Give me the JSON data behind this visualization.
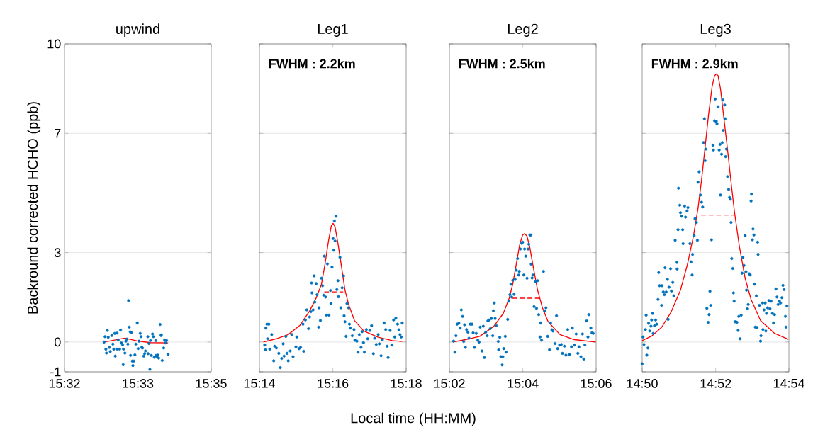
{
  "chart_data": [
    {
      "type": "scatter",
      "title": "upwind",
      "ylabel": "Backround corrected HCHO (ppb)",
      "xlim": [
        15.5333,
        15.5833
      ],
      "ylim": [
        -1,
        10
      ],
      "xticks": [
        {
          "value": 15.5333,
          "label": "15:32"
        },
        {
          "value": 15.5583,
          "label": "15:33"
        },
        {
          "value": 15.5833,
          "label": "15:35"
        }
      ],
      "yticks": [
        -1,
        0,
        3,
        7,
        10
      ],
      "grid": "y",
      "series": [
        {
          "type": "scatter",
          "color": "#0072bd",
          "marker": "circle",
          "x": [
            15.5468,
            15.5471,
            15.5479,
            15.5474,
            15.5476,
            15.5482,
            15.5486,
            15.5489,
            15.5494,
            15.5498,
            15.5501,
            15.5504,
            15.5506,
            15.5512,
            15.5513,
            15.5516,
            15.5521,
            15.5524,
            15.5527,
            15.5531,
            15.5533,
            15.5534,
            15.5539,
            15.5542,
            15.5546,
            15.5549,
            15.5551,
            15.5554,
            15.5557,
            15.5558,
            15.5561,
            15.5564,
            15.5566,
            15.5569,
            15.5573,
            15.5576,
            15.5581,
            15.5584,
            15.5587,
            15.5591,
            15.5594,
            15.5596,
            15.5599,
            15.5603,
            15.5606,
            15.5609,
            15.5617,
            15.5618,
            15.5621,
            15.5624,
            15.5626,
            15.5629,
            15.5633,
            15.5636,
            15.5639,
            15.5644,
            15.5645,
            15.5648,
            15.5651,
            15.5654,
            15.5659,
            15.5662,
            15.5663,
            15.5666,
            15.5671,
            15.5674,
            15.5677,
            15.5681,
            15.5686
          ],
          "values": [
            0.0,
            0.18,
            0.39,
            -0.24,
            -0.37,
            0.16,
            -0.18,
            -0.32,
            0.22,
            -0.07,
            -0.24,
            0.29,
            -0.47,
            0.3,
            -0.24,
            0.07,
            -0.24,
            0.4,
            -0.03,
            -0.09,
            -0.76,
            -0.24,
            -0.37,
            0.03,
            0.1,
            -0.07,
            1.39,
            0.5,
            0.34,
            -0.45,
            0.32,
            -0.64,
            -0.79,
            -0.64,
            -0.43,
            -0.07,
            0.64,
            -0.22,
            0.03,
            0.29,
            0.18,
            -0.18,
            -0.2,
            -0.47,
            -0.39,
            -0.3,
            0.18,
            -0.39,
            -0.05,
            -0.92,
            0.05,
            -0.45,
            0.27,
            0.18,
            -0.51,
            0.05,
            -0.45,
            -0.49,
            -0.44,
            -0.54,
            0.59,
            0.22,
            0.24,
            -0.62,
            -0.2,
            0.07,
            -0.03,
            0.05,
            -0.41
          ]
        },
        {
          "type": "line",
          "color": "#ff0000",
          "line_style": "solid",
          "x": [
            15.5468,
            15.5539,
            15.5584,
            15.5626,
            15.5686
          ],
          "values": [
            0.0,
            0.13,
            0.03,
            -0.02,
            -0.03
          ]
        }
      ]
    },
    {
      "type": "scatter",
      "title": "Leg1",
      "xlabel": "Local time (HH:MM)",
      "xlim": [
        15.2333,
        15.3
      ],
      "ylim": [
        -1,
        10
      ],
      "xticks": [
        {
          "value": 15.2333,
          "label": "15:14"
        },
        {
          "value": 15.2667,
          "label": "15:16"
        },
        {
          "value": 15.3,
          "label": "15:18"
        }
      ],
      "yticks": [
        -1,
        0,
        3,
        7,
        10
      ],
      "grid": "y",
      "tick_labels": "x",
      "annotations": [
        "FWHM : 2.2km"
      ],
      "series": [
        {
          "type": "scatter",
          "color": "#0072bd",
          "marker": "circle",
          "x": [
            15.2357,
            15.2362,
            15.2367,
            15.2376,
            15.237,
            15.236,
            15.238,
            15.2389,
            15.2398,
            15.2402,
            15.241,
            15.2421,
            15.2428,
            15.2434,
            15.2441,
            15.2445,
            15.2453,
            15.2459,
            15.2464,
            15.2473,
            15.248,
            15.2486,
            15.2499,
            15.2503,
            15.2513,
            15.252,
            15.2534,
            15.2531,
            15.2542,
            15.2548,
            15.2556,
            15.2561,
            15.2567,
            15.257,
            15.2572,
            15.2577,
            15.2582,
            15.2585,
            15.2591,
            15.2595,
            15.2602,
            15.2604,
            15.261,
            15.2615,
            15.262,
            15.2625,
            15.2628,
            15.2634,
            15.2638,
            15.2642,
            15.2649,
            15.2656,
            15.2658,
            15.2663,
            15.2668,
            15.2671,
            15.2674,
            15.2677,
            15.2681,
            15.2685,
            15.269,
            15.2692,
            15.2699,
            15.2703,
            15.2709,
            15.2716,
            15.2718,
            15.2722,
            15.2727,
            15.2731,
            15.2738,
            15.2742,
            15.2746,
            15.2755,
            15.2763,
            15.2767,
            15.2776,
            15.2781,
            15.2787,
            15.2795,
            15.28,
            15.2806,
            15.281,
            15.2819,
            15.2825,
            15.2835,
            15.2843,
            15.2851,
            15.2857,
            15.2864,
            15.2873,
            15.2878,
            15.2886,
            15.2892,
            15.29,
            15.2907,
            15.2914,
            15.2918,
            15.2927,
            15.2935,
            15.2943,
            15.2948,
            15.2953,
            15.2961,
            15.2967,
            15.2972,
            15.2978,
            15.2982
          ],
          "values": [
            -0.1,
            0.47,
            0.6,
            0.6,
            0.11,
            -0.26,
            -0.24,
            0.25,
            -0.63,
            -0.14,
            -0.2,
            -0.38,
            -0.86,
            -0.55,
            -0.06,
            -0.47,
            0.19,
            -0.38,
            -0.63,
            -0.3,
            0.25,
            -0.49,
            -0.16,
            0.17,
            -0.22,
            -0.18,
            -0.31,
            0.6,
            0.74,
            1.08,
            0.45,
            0.84,
            1.02,
            1.98,
            1.65,
            1.08,
            2.22,
            1.34,
            1.96,
            1.59,
            0.5,
            1.15,
            0.72,
            2.14,
            1.89,
            1.57,
            2.88,
            1.51,
            0.9,
            2.62,
            0.9,
            1.73,
            1.29,
            2.51,
            3.47,
            3.08,
            4.06,
            3.39,
            4.22,
            1.76,
            2.06,
            1.52,
            2.84,
            1.15,
            1.82,
            2.22,
            0.88,
            0.68,
            0.19,
            1.29,
            1.15,
            0.6,
            0.47,
            0.21,
            0.42,
            0.06,
            0.03,
            -0.34,
            0.25,
            -0.18,
            0.35,
            -0.02,
            -0.34,
            0.42,
            0.11,
            0.39,
            0.55,
            -0.39,
            0.13,
            -0.08,
            0.25,
            -0.06,
            -0.46,
            0.08,
            0.64,
            0.42,
            -0.14,
            -0.52,
            0.39,
            -0.1,
            0.74,
            0.17,
            0.8,
            0.6,
            0.41,
            0.25,
            0.17,
            0.64
          ]
        },
        {
          "type": "line",
          "color": "#ff0000",
          "line_style": "solid",
          "x": [
            15.2351,
            15.241,
            15.2464,
            15.2518,
            15.2561,
            15.2593,
            15.2615,
            15.2631,
            15.2647,
            15.266,
            15.2668,
            15.2677,
            15.269,
            15.2706,
            15.2722,
            15.2738,
            15.2765,
            15.2808,
            15.2873,
            15.2937,
            15.2982
          ],
          "values": [
            0,
            0.11,
            0.25,
            0.57,
            1.04,
            1.51,
            1.94,
            2.61,
            3.39,
            3.9,
            3.98,
            3.86,
            3.31,
            2.53,
            1.74,
            1.27,
            0.72,
            0.37,
            0.16,
            0.05,
            0.02
          ]
        },
        {
          "type": "line",
          "color": "#ff0000",
          "line_style": "dashed",
          "x": [
            15.2628,
            15.2714
          ],
          "values": [
            1.68,
            1.68
          ]
        }
      ]
    },
    {
      "type": "scatter",
      "title": "Leg2",
      "xlim": [
        15.0333,
        15.1
      ],
      "ylim": [
        -1,
        10
      ],
      "xticks": [
        {
          "value": 15.0333,
          "label": "15:02"
        },
        {
          "value": 15.0667,
          "label": "15:04"
        },
        {
          "value": 15.1,
          "label": "15:06"
        }
      ],
      "yticks": [
        -1,
        0,
        3,
        7,
        10
      ],
      "grid": "y",
      "tick_labels": "x",
      "annotations": [
        "FWHM : 2.5km"
      ],
      "series": [
        {
          "type": "scatter",
          "color": "#0072bd",
          "marker": "circle",
          "x": [
            15.0352,
            15.0358,
            15.0363,
            15.0368,
            15.0376,
            15.0382,
            15.0387,
            15.0393,
            15.0398,
            15.0402,
            15.0406,
            15.0411,
            15.0417,
            15.0422,
            15.0428,
            15.0436,
            15.0441,
            15.0447,
            15.0455,
            15.0462,
            15.0468,
            15.0473,
            15.0481,
            15.0487,
            15.0492,
            15.0498,
            15.0505,
            15.0508,
            15.0514,
            15.0519,
            15.0524,
            15.053,
            15.0533,
            15.0537,
            15.0541,
            15.0546,
            15.0555,
            15.0557,
            15.0562,
            15.0567,
            15.0573,
            15.0576,
            15.058,
            15.0587,
            15.0591,
            15.0598,
            15.0603,
            15.0608,
            15.0613,
            15.0616,
            15.0621,
            15.0627,
            15.0632,
            15.0637,
            15.0643,
            15.0648,
            15.0651,
            15.0656,
            15.0662,
            15.0666,
            15.0671,
            15.0675,
            15.068,
            15.0686,
            15.0691,
            15.0694,
            15.0699,
            15.0703,
            15.0705,
            15.0709,
            15.0713,
            15.0718,
            15.0724,
            15.0729,
            15.0734,
            15.0739,
            15.0745,
            15.0748,
            15.0752,
            15.0761,
            15.0766,
            15.0772,
            15.078,
            15.0788,
            15.0793,
            15.0799,
            15.0804,
            15.0813,
            15.082,
            15.0825,
            15.0834,
            15.0842,
            15.0847,
            15.0856,
            15.0863,
            15.0871,
            15.0879,
            15.0888,
            15.0892,
            15.0901,
            15.0909,
            15.0917,
            15.0922,
            15.0931,
            15.0938,
            15.0944,
            15.0949,
            15.0957,
            15.0963,
            15.0967,
            15.0976,
            15.0981,
            15.0987
          ],
          "values": [
            0.03,
            -0.34,
            0.21,
            0.6,
            0.63,
            0.47,
            1.08,
            0.86,
            0.02,
            0.58,
            -0.18,
            0.42,
            0.33,
            0.13,
            0.6,
            0.6,
            0.31,
            -0.18,
            0.29,
            0.06,
            0,
            0.5,
            -0.3,
            0.53,
            -0.52,
            0.33,
            0.21,
            0.71,
            0.74,
            0.45,
            0.79,
            0.21,
            1.05,
            1.31,
            0.79,
            0.55,
            0.02,
            -0.26,
            0.16,
            -0.49,
            -0.77,
            -0.49,
            -0.22,
            0.19,
            -0.34,
            0.76,
            1.37,
            1.59,
            1.94,
            1.51,
            2.07,
            1.6,
            2.1,
            2.41,
            2.8,
            2.25,
            2.37,
            3.12,
            3.31,
            3.35,
            2.25,
            3.12,
            2.88,
            2.14,
            3.12,
            3.28,
            3.59,
            3.59,
            2.61,
            2.15,
            2.25,
            1.19,
            2.02,
            1.13,
            2.06,
            0.92,
            0.17,
            0.64,
            0.06,
            2.37,
            1.04,
            1.15,
            0.19,
            -0.26,
            0.64,
            0.41,
            0.37,
            -0.05,
            0.88,
            -0.22,
            -0.1,
            -0.08,
            -0.38,
            -0.14,
            -0.44,
            0.42,
            -0.42,
            -0.16,
            0.47,
            -0.1,
            0.27,
            -0.38,
            -0.16,
            -0.49,
            0.27,
            -0.57,
            -0.1,
            0.71,
            0.17,
            0.92,
            0.47,
            0.31,
            0.29
          ]
        },
        {
          "type": "line",
          "color": "#ff0000",
          "line_style": "solid",
          "x": [
            15.035,
            15.0406,
            15.0471,
            15.0535,
            15.0578,
            15.0605,
            15.0621,
            15.0637,
            15.0653,
            15.0666,
            15.0675,
            15.0686,
            15.0699,
            15.0716,
            15.0734,
            15.0756,
            15.0782,
            15.0836,
            15.0901,
            15.0998
          ],
          "values": [
            0,
            0.08,
            0.19,
            0.53,
            0.96,
            1.47,
            1.94,
            2.61,
            3.28,
            3.59,
            3.64,
            3.55,
            3.16,
            2.45,
            1.74,
            1.15,
            0.68,
            0.25,
            0.08,
            0
          ]
        },
        {
          "type": "line",
          "color": "#ff0000",
          "line_style": "dashed",
          "x": [
            15.0619,
            15.0739
          ],
          "values": [
            1.47,
            1.47
          ]
        }
      ]
    },
    {
      "type": "scatter",
      "title": "Leg3",
      "xlim": [
        14.8333,
        14.9
      ],
      "ylim": [
        -1,
        10
      ],
      "xticks": [
        {
          "value": 14.8333,
          "label": "14:50"
        },
        {
          "value": 14.8667,
          "label": "14:52"
        },
        {
          "value": 14.9,
          "label": "14:54"
        }
      ],
      "yticks": [
        -1,
        0,
        3,
        7,
        10
      ],
      "grid": "y",
      "tick_labels": "x",
      "annotations": [
        "FWHM : 2.9km"
      ],
      "series": [
        {
          "type": "scatter",
          "color": "#0072bd",
          "marker": "circle",
          "x": [
            14.8333,
            14.8337,
            14.8341,
            14.8348,
            14.8351,
            14.8354,
            14.8359,
            14.8362,
            14.8367,
            14.8373,
            14.8376,
            14.838,
            14.8383,
            14.8389,
            14.8394,
            14.8399,
            14.8405,
            14.8408,
            14.8412,
            14.8421,
            14.8423,
            14.8429,
            14.8434,
            14.8437,
            14.8442,
            14.8448,
            14.8451,
            14.8455,
            14.8462,
            14.8466,
            14.8472,
            14.8477,
            14.8483,
            14.8491,
            14.8492,
            14.8496,
            14.8498,
            14.8504,
            14.8507,
            14.8512,
            14.8517,
            14.8519,
            14.8526,
            14.853,
            14.8537,
            14.8541,
            14.855,
            14.8555,
            14.856,
            14.8562,
            14.8569,
            14.8573,
            14.858,
            14.8584,
            14.8587,
            14.8592,
            14.8598,
            14.8603,
            14.8608,
            14.8612,
            14.8616,
            14.8619,
            14.8622,
            14.8627,
            14.8633,
            14.8637,
            14.8641,
            14.8644,
            14.8648,
            14.8655,
            14.8657,
            14.8662,
            14.8665,
            14.867,
            14.8673,
            14.8678,
            14.8683,
            14.8687,
            14.8689,
            14.8694,
            14.8697,
            14.87,
            14.8702,
            14.8708,
            14.871,
            14.8712,
            14.8716,
            14.8721,
            14.8726,
            14.873,
            14.8734,
            14.8737,
            14.874,
            14.8745,
            14.8748,
            14.8751,
            14.8755,
            14.8759,
            14.8764,
            14.8769,
            14.8772,
            14.8778,
            14.8783,
            14.8787,
            14.8791,
            14.8796,
            14.8801,
            14.8805,
            14.8807,
            14.8812,
            14.8815,
            14.882,
            14.8824,
            14.8828,
            14.883,
            14.8834,
            14.8837,
            14.8841,
            14.8844,
            14.8847,
            14.8852,
            14.8855,
            14.8858,
            14.886,
            14.8866,
            14.8871,
            14.8873,
            14.888,
            14.8882,
            14.8887,
            14.8892,
            14.8895,
            14.8898,
            14.8903,
            14.8909,
            14.8914,
            14.8919,
            14.8925,
            14.893,
            14.8935,
            14.8941,
            14.8946,
            14.8951,
            14.8957,
            14.8962,
            14.8968,
            14.8973,
            14.8978,
            14.8984,
            14.8987,
            14.8991
          ],
          "values": [
            -0.73,
            0.17,
            -0.08,
            0.42,
            0.9,
            -0.44,
            -0.2,
            0.63,
            0.37,
            0.53,
            0.74,
            0.96,
            0.29,
            0.55,
            0.74,
            0.6,
            1.43,
            2.33,
            1.89,
            1.23,
            1.89,
            1.68,
            1.59,
            2.49,
            1.68,
            2.1,
            0.76,
            1.84,
            2.46,
            1.71,
            2.0,
            1.55,
            3.41,
            2.67,
            2.45,
            3.77,
            5.16,
            4.59,
            4.34,
            4.22,
            3.77,
            3.3,
            4.56,
            4.19,
            4.4,
            4.51,
            3.3,
            2.69,
            2.25,
            2.94,
            3.57,
            4.14,
            4.01,
            3.41,
            5.36,
            5.71,
            4.93,
            4.69,
            4.53,
            6.69,
            7.49,
            6.08,
            6.47,
            1.13,
            0.66,
            0.92,
            1.7,
            1.23,
            3.43,
            6.6,
            6.44,
            7.42,
            8.15,
            7.4,
            7.32,
            7.89,
            6.44,
            6.63,
            4.93,
            6.3,
            6.69,
            8.12,
            7.1,
            7.95,
            7.49,
            6.22,
            6.47,
            5.55,
            5.12,
            4.85,
            4.79,
            4.01,
            2.8,
            2.47,
            1.65,
            1.37,
            0.68,
            0.68,
            0.66,
            0.39,
            0.86,
            0.11,
            0.9,
            2.31,
            2.84,
            2.57,
            3.57,
            2.36,
            1.74,
            1.12,
            1.26,
            2.29,
            2.25,
            4.73,
            4.96,
            3.43,
            3.79,
            3.59,
            1.94,
            0.5,
            1.55,
            0.49,
            3.35,
            2.94,
            1.23,
            0.03,
            0.21,
            1.31,
            0.42,
            1.08,
            1.31,
            0.37,
            0.96,
            1.15,
            1.39,
            1.12,
            1.37,
            0.96,
            0.64,
            0.92,
            1.78,
            1.51,
            1.26,
            1.37,
            1.31,
            1.49,
            1.9,
            1.76,
            0.86,
            0.5,
            1.21
          ]
        },
        {
          "type": "line",
          "color": "#ff0000",
          "line_style": "solid",
          "x": [
            14.8333,
            14.8378,
            14.8421,
            14.8464,
            14.8507,
            14.8539,
            14.8566,
            14.8587,
            14.8603,
            14.8619,
            14.8635,
            14.8651,
            14.8662,
            14.867,
            14.8678,
            14.8689,
            14.8705,
            14.8721,
            14.8737,
            14.8753,
            14.8775,
            14.8801,
            14.8828,
            14.8871,
            14.8935,
            14.8998
          ],
          "values": [
            0.05,
            0.21,
            0.49,
            1.0,
            1.74,
            2.61,
            3.55,
            4.49,
            5.44,
            6.54,
            7.64,
            8.58,
            8.93,
            8.99,
            8.93,
            8.5,
            7.48,
            6.46,
            5.36,
            4.34,
            3.2,
            2.14,
            1.43,
            0.72,
            0.29,
            0.09
          ]
        },
        {
          "type": "line",
          "color": "#ff0000",
          "line_style": "dashed",
          "x": [
            14.8601,
            14.8751
          ],
          "values": [
            4.26,
            4.26
          ]
        }
      ]
    }
  ]
}
